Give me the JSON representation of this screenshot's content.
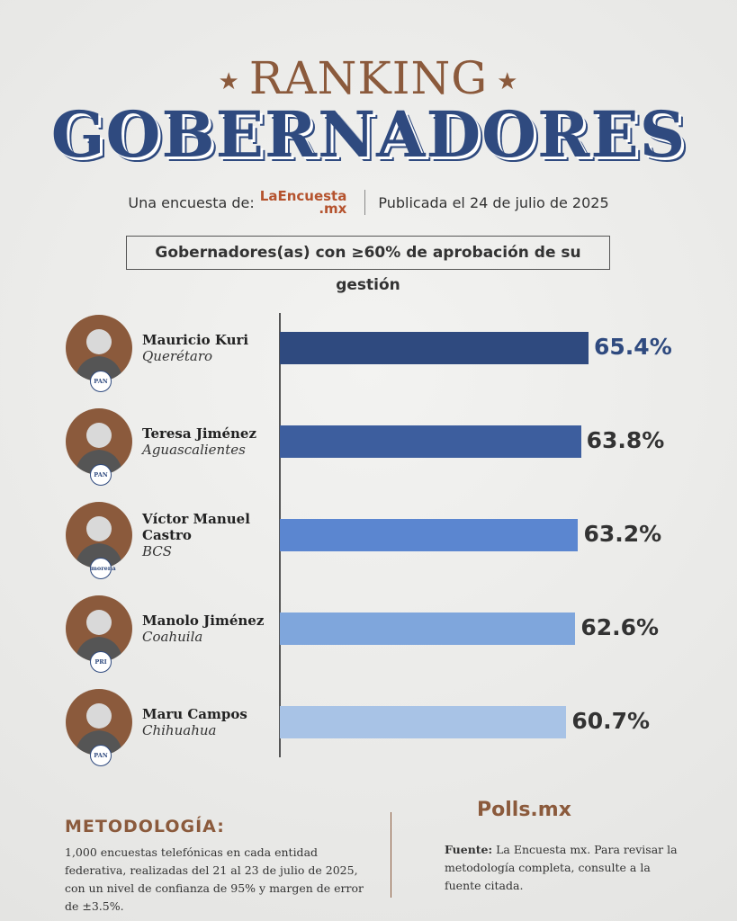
{
  "header": {
    "kicker": "RANKING",
    "title": "GOBERNADORES",
    "survey_by": "Una encuesta de:",
    "logo_main": "LaEncuesta",
    "logo_sub": ".mx",
    "published": "Publicada el 24 de julio de 2025"
  },
  "chart_data": {
    "type": "bar",
    "orientation": "horizontal",
    "subtitle": "Gobernadores(as) con ≥60% de aprobación de su gestión",
    "categories": [
      "Mauricio Kuri",
      "Teresa Jiménez",
      "Víctor Manuel Castro",
      "Manolo Jiménez",
      "Maru Campos"
    ],
    "regions": [
      "Querétaro",
      "Aguascalientes",
      "BCS",
      "Coahuila",
      "Chihuahua"
    ],
    "parties": [
      "PAN",
      "PAN",
      "morena",
      "PRI",
      "PAN"
    ],
    "values": [
      65.4,
      63.8,
      63.2,
      62.6,
      60.7
    ],
    "value_labels": [
      "65.4%",
      "63.8%",
      "63.2%",
      "62.6%",
      "60.7%"
    ],
    "colors": [
      "#2f4a7f",
      "#3d5e9e",
      "#5b86d0",
      "#7fa6dc",
      "#a8c3e6"
    ],
    "label_colors": [
      "#2f4a7f",
      "#333333",
      "#333333",
      "#333333",
      "#333333"
    ]
  },
  "footer": {
    "method_title": "METODOLOGÍA:",
    "method_text": "1,000 encuestas telefónicas en cada entidad federativa, realizadas del 21 al 23 de julio de 2025, con un nivel de confianza de 95% y margen de error de ±3.5%.",
    "brand": "Polls.mx",
    "source_label": "Fuente:",
    "source_text": "La Encuesta mx. Para revisar la metodología completa, consulte a la fuente citada."
  }
}
